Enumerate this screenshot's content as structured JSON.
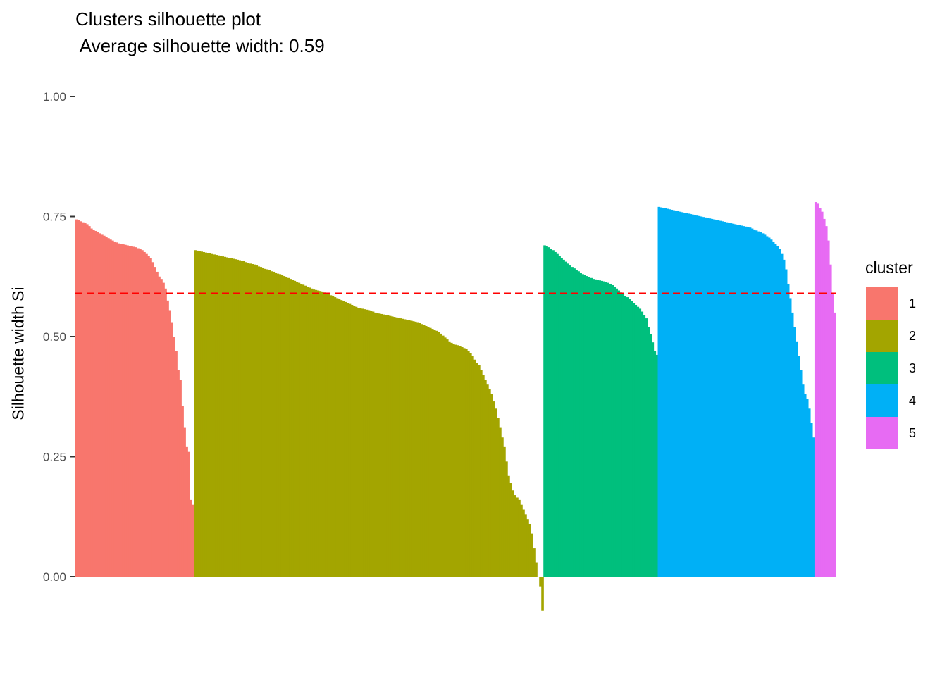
{
  "chart_data": {
    "type": "bar",
    "title": "Clusters silhouette plot",
    "subtitle": " Average silhouette width: 0.59",
    "xlabel": "",
    "ylabel": "Silhouette width Si",
    "ylim": [
      -0.08,
      1.0
    ],
    "yticks": [
      0,
      0.25,
      0.5,
      0.75,
      1.0
    ],
    "ytick_labels": [
      "0.00",
      "0.25",
      "0.50",
      "0.75",
      "1.00"
    ],
    "grid": false,
    "legend": {
      "title": "cluster",
      "position": "right"
    },
    "reference_line": {
      "y": 0.59,
      "style": "dashed",
      "color": "#FF0000"
    },
    "clusters": [
      {
        "name": "1",
        "color": "#F8766D",
        "n": 56,
        "values": [
          0.744,
          0.742,
          0.74,
          0.738,
          0.736,
          0.734,
          0.73,
          0.725,
          0.722,
          0.72,
          0.718,
          0.715,
          0.712,
          0.71,
          0.707,
          0.705,
          0.702,
          0.7,
          0.698,
          0.696,
          0.694,
          0.693,
          0.692,
          0.691,
          0.69,
          0.689,
          0.688,
          0.687,
          0.686,
          0.684,
          0.682,
          0.68,
          0.676,
          0.672,
          0.668,
          0.664,
          0.655,
          0.645,
          0.635,
          0.625,
          0.62,
          0.612,
          0.6,
          0.575,
          0.555,
          0.53,
          0.5,
          0.47,
          0.43,
          0.41,
          0.355,
          0.31,
          0.27,
          0.26,
          0.16,
          0.15
        ]
      },
      {
        "name": "2",
        "color": "#A3A500",
        "n": 165,
        "values": [
          0.68,
          0.679,
          0.678,
          0.677,
          0.676,
          0.675,
          0.674,
          0.673,
          0.672,
          0.671,
          0.67,
          0.669,
          0.668,
          0.667,
          0.666,
          0.665,
          0.664,
          0.663,
          0.662,
          0.661,
          0.66,
          0.659,
          0.658,
          0.657,
          0.655,
          0.653,
          0.652,
          0.651,
          0.65,
          0.648,
          0.646,
          0.645,
          0.643,
          0.641,
          0.64,
          0.638,
          0.636,
          0.635,
          0.633,
          0.631,
          0.63,
          0.628,
          0.626,
          0.624,
          0.622,
          0.62,
          0.618,
          0.616,
          0.614,
          0.612,
          0.61,
          0.608,
          0.606,
          0.604,
          0.602,
          0.6,
          0.598,
          0.597,
          0.596,
          0.595,
          0.594,
          0.592,
          0.59,
          0.588,
          0.586,
          0.584,
          0.582,
          0.58,
          0.578,
          0.576,
          0.574,
          0.572,
          0.57,
          0.568,
          0.566,
          0.564,
          0.562,
          0.56,
          0.559,
          0.558,
          0.557,
          0.556,
          0.555,
          0.554,
          0.552,
          0.55,
          0.549,
          0.548,
          0.547,
          0.546,
          0.545,
          0.544,
          0.543,
          0.542,
          0.541,
          0.54,
          0.539,
          0.538,
          0.537,
          0.536,
          0.535,
          0.534,
          0.533,
          0.532,
          0.531,
          0.53,
          0.528,
          0.526,
          0.524,
          0.522,
          0.52,
          0.518,
          0.516,
          0.514,
          0.512,
          0.51,
          0.506,
          0.502,
          0.498,
          0.494,
          0.49,
          0.487,
          0.485,
          0.483,
          0.482,
          0.48,
          0.478,
          0.476,
          0.474,
          0.47,
          0.465,
          0.46,
          0.452,
          0.445,
          0.44,
          0.43,
          0.42,
          0.41,
          0.4,
          0.39,
          0.38,
          0.365,
          0.35,
          0.33,
          0.31,
          0.29,
          0.27,
          0.24,
          0.21,
          0.195,
          0.18,
          0.17,
          0.165,
          0.16,
          0.15,
          0.14,
          0.13,
          0.12,
          0.11,
          0.09,
          0.06,
          0.03,
          0.0,
          -0.02,
          -0.07
        ]
      },
      {
        "name": "3",
        "color": "#00BF7D",
        "n": 54,
        "values": [
          0.69,
          0.688,
          0.686,
          0.683,
          0.68,
          0.676,
          0.672,
          0.668,
          0.664,
          0.66,
          0.656,
          0.652,
          0.648,
          0.645,
          0.642,
          0.639,
          0.636,
          0.633,
          0.63,
          0.628,
          0.626,
          0.624,
          0.622,
          0.62,
          0.619,
          0.618,
          0.617,
          0.616,
          0.615,
          0.614,
          0.612,
          0.61,
          0.607,
          0.604,
          0.6,
          0.596,
          0.592,
          0.588,
          0.585,
          0.582,
          0.578,
          0.574,
          0.57,
          0.566,
          0.562,
          0.558,
          0.552,
          0.545,
          0.538,
          0.52,
          0.505,
          0.488,
          0.47,
          0.462
        ]
      },
      {
        "name": "4",
        "color": "#00B0F6",
        "n": 74,
        "values": [
          0.77,
          0.769,
          0.768,
          0.767,
          0.766,
          0.765,
          0.764,
          0.763,
          0.762,
          0.761,
          0.76,
          0.759,
          0.758,
          0.757,
          0.756,
          0.755,
          0.754,
          0.753,
          0.752,
          0.751,
          0.75,
          0.749,
          0.748,
          0.747,
          0.746,
          0.745,
          0.744,
          0.743,
          0.742,
          0.741,
          0.74,
          0.739,
          0.738,
          0.737,
          0.736,
          0.735,
          0.734,
          0.733,
          0.732,
          0.731,
          0.73,
          0.729,
          0.728,
          0.727,
          0.725,
          0.723,
          0.721,
          0.719,
          0.717,
          0.715,
          0.712,
          0.709,
          0.706,
          0.702,
          0.698,
          0.693,
          0.688,
          0.682,
          0.672,
          0.66,
          0.64,
          0.61,
          0.58,
          0.55,
          0.52,
          0.49,
          0.46,
          0.43,
          0.4,
          0.38,
          0.37,
          0.35,
          0.32,
          0.29
        ]
      },
      {
        "name": "5",
        "color": "#E76BF3",
        "n": 10,
        "values": [
          0.78,
          0.778,
          0.768,
          0.76,
          0.745,
          0.73,
          0.7,
          0.65,
          0.59,
          0.55
        ]
      }
    ]
  }
}
